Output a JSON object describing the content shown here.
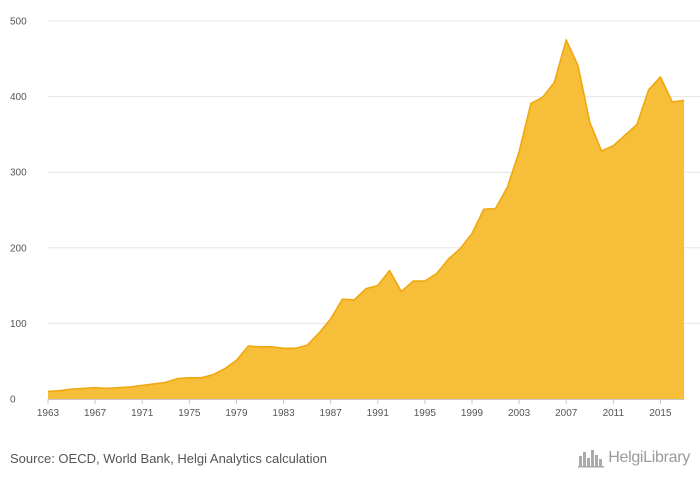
{
  "chart_data": {
    "type": "area",
    "title": "",
    "xlabel": "",
    "ylabel": "",
    "x": [
      1963,
      1964,
      1965,
      1966,
      1967,
      1968,
      1969,
      1970,
      1971,
      1972,
      1973,
      1974,
      1975,
      1976,
      1977,
      1978,
      1979,
      1980,
      1981,
      1982,
      1983,
      1984,
      1985,
      1986,
      1987,
      1988,
      1989,
      1990,
      1991,
      1992,
      1993,
      1994,
      1995,
      1996,
      1997,
      1998,
      1999,
      2000,
      2001,
      2002,
      2003,
      2004,
      2005,
      2006,
      2007,
      2008,
      2009,
      2010,
      2011,
      2012,
      2013,
      2014,
      2015,
      2016,
      2017
    ],
    "values": [
      10,
      11,
      13,
      14,
      15,
      14,
      15,
      16,
      18,
      20,
      22,
      27,
      28,
      28,
      32,
      40,
      51,
      70,
      69,
      69,
      67,
      67,
      71,
      87,
      106,
      132,
      131,
      146,
      150,
      170,
      142,
      156,
      156,
      166,
      185,
      199,
      219,
      251,
      252,
      280,
      327,
      391,
      399,
      419,
      475,
      441,
      366,
      328,
      335,
      349,
      363,
      409,
      426,
      393,
      395
    ],
    "ylim": [
      0,
      500
    ],
    "yticks": [
      "0",
      "100",
      "200",
      "300",
      "400",
      "500"
    ],
    "xticks": [
      "1963",
      "1967",
      "1971",
      "1975",
      "1979",
      "1983",
      "1987",
      "1991",
      "1995",
      "1999",
      "2003",
      "2007",
      "2011",
      "2015"
    ],
    "xtick_years": [
      1963,
      1967,
      1971,
      1975,
      1979,
      1983,
      1987,
      1991,
      1995,
      1999,
      2003,
      2007,
      2011,
      2015
    ],
    "grid": true,
    "colors": {
      "fill": "#F7BE3A",
      "line": "#EFA80E",
      "grid": "#e6e6e6",
      "axis": "#c8c8c8"
    }
  },
  "footer": {
    "source": "Source: OECD, World Bank, Helgi Analytics calculation",
    "logo": "HelgiLibrary"
  }
}
